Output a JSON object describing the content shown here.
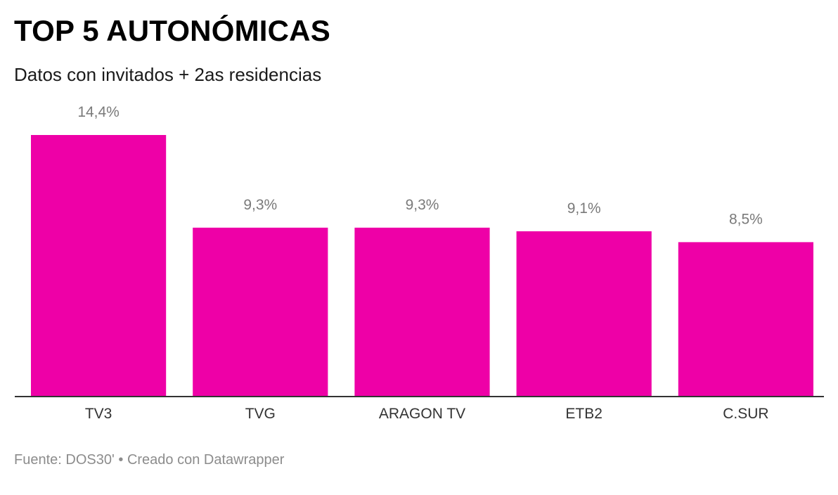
{
  "title": "TOP 5 AUTONÓMICAS",
  "subtitle": "Datos con invitados + 2as residencias",
  "footer": {
    "source": "Fuente: DOS30'",
    "separator": "•",
    "credit": "Creado con Datawrapper"
  },
  "colors": {
    "bar": "#ee00a7",
    "value_label": "#7a7a7a",
    "axis_label": "#333333",
    "baseline": "#333333"
  },
  "chart_data": {
    "type": "bar",
    "title": "TOP 5 AUTONÓMICAS",
    "subtitle": "Datos con invitados + 2as residencias",
    "xlabel": "",
    "ylabel": "",
    "unit": "%",
    "categories": [
      "TV3",
      "TVG",
      "ARAGON TV",
      "ETB2",
      "C.SUR"
    ],
    "values": [
      14.4,
      9.3,
      9.3,
      9.1,
      8.5
    ],
    "value_labels": [
      "14,4%",
      "9,3%",
      "9,3%",
      "9,1%",
      "8,5%"
    ],
    "ylim": [
      0,
      14.4
    ],
    "grid": false,
    "legend": "none"
  }
}
